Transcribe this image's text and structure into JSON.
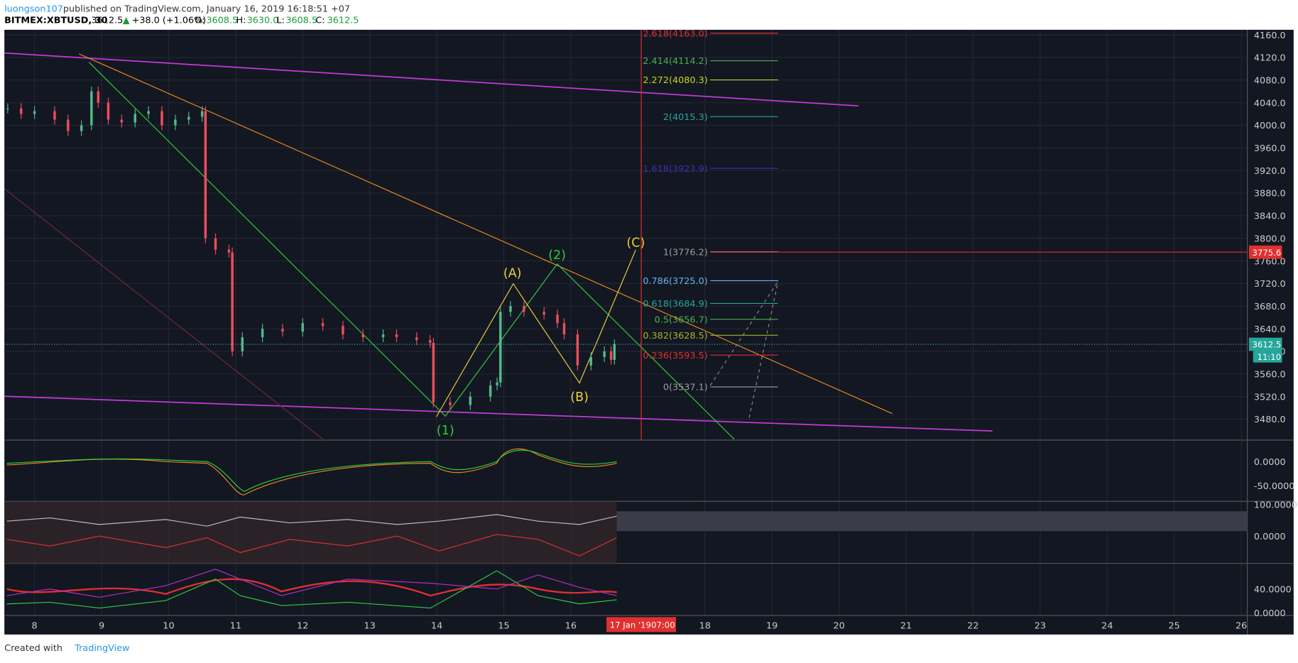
{
  "header": {
    "user": "luongson107",
    "published": "published on TradingView.com, January 16, 2019 16:18:51 +07",
    "symbol": "BITMEX:XBTUSD, 30",
    "price": "3612.5",
    "change": "+38.0 (+1.06%)",
    "o_label": "O:",
    "o": "3608.5",
    "h_label": "H:",
    "h": "3630.0",
    "l_label": "L:",
    "l": "3608.5",
    "c_label": "C:",
    "c": "3612.5"
  },
  "chart_data": {
    "type": "candlestick",
    "x": [
      7.6,
      7.8,
      8.0,
      8.3,
      8.5,
      8.7,
      8.85,
      8.95,
      9.1,
      9.3,
      9.5,
      9.7,
      9.9,
      10.1,
      10.3,
      10.5,
      10.55,
      10.7,
      10.9,
      10.95,
      11.1,
      11.4,
      11.7,
      12.0,
      12.3,
      12.6,
      12.9,
      13.2,
      13.4,
      13.7,
      13.9,
      13.95,
      14.2,
      14.5,
      14.8,
      14.9,
      14.95,
      15.1,
      15.3,
      15.6,
      15.8,
      15.9,
      16.1,
      16.3,
      16.5,
      16.6,
      16.65
    ],
    "values": [
      4030,
      4020,
      4025,
      4010,
      3990,
      4000,
      4060,
      4040,
      4010,
      4005,
      4020,
      4025,
      4000,
      4010,
      4015,
      4025,
      3800,
      3780,
      3775,
      3600,
      3625,
      3640,
      3635,
      3650,
      3645,
      3630,
      3625,
      3630,
      3625,
      3620,
      3615,
      3510,
      3505,
      3520,
      3540,
      3545,
      3670,
      3680,
      3670,
      3665,
      3650,
      3630,
      3575,
      3590,
      3600,
      3585,
      3612.5
    ],
    "up_color": "#53b987",
    "down_color": "#eb4d5c",
    "xlim": [
      7.55,
      26.09
    ],
    "ylim": [
      3443,
      4169
    ],
    "xticks": [
      8,
      9,
      10,
      11,
      12,
      13,
      14,
      15,
      16,
      18,
      19,
      20,
      21,
      22,
      23,
      24,
      25,
      26
    ],
    "yticks": [
      {
        "value": 4160,
        "label": "4160.0"
      },
      {
        "value": 4120,
        "label": "4120.0"
      },
      {
        "value": 4080,
        "label": "4080.0"
      },
      {
        "value": 4040,
        "label": "4040.0"
      },
      {
        "value": 4000,
        "label": "4000.0"
      },
      {
        "value": 3960,
        "label": "3960.0"
      },
      {
        "value": 3920,
        "label": "3920.0"
      },
      {
        "value": 3880,
        "label": "3880.0"
      },
      {
        "value": 3840,
        "label": "3840.0"
      },
      {
        "value": 3800,
        "label": "3800.0"
      },
      {
        "value": 3760,
        "label": "3760.0"
      },
      {
        "value": 3720,
        "label": "3720.0"
      },
      {
        "value": 3680,
        "label": "3680.0"
      },
      {
        "value": 3640,
        "label": "3640.0"
      },
      {
        "value": 3600,
        "label": "3600.0"
      },
      {
        "value": 3560,
        "label": "3560.0"
      },
      {
        "value": 3520,
        "label": "3520.0"
      },
      {
        "value": 3480,
        "label": "3480.0"
      }
    ],
    "fib": [
      {
        "label": "2.618(4163.0)",
        "value": 4163.0,
        "color": "#e0302f"
      },
      {
        "label": "2.414(4114.2)",
        "value": 4114.2,
        "color": "#4caf50"
      },
      {
        "label": "2.272(4080.3)",
        "value": 4080.3,
        "color": "#c4d21a"
      },
      {
        "label": "2(4015.3)",
        "value": 4015.3,
        "color": "#26a69a"
      },
      {
        "label": "1.618(3923.9)",
        "value": 3923.9,
        "color": "#3333aa"
      },
      {
        "label": "1(3776.2)",
        "value": 3776.2,
        "color": "#9e9e9e"
      },
      {
        "label": "0.786(3725.0)",
        "value": 3725.0,
        "color": "#64b5f6"
      },
      {
        "label": "0.618(3684.9)",
        "value": 3684.9,
        "color": "#26a69a"
      },
      {
        "label": "0.5(3656.7)",
        "value": 3656.7,
        "color": "#4caf50"
      },
      {
        "label": "0.382(3628.5)",
        "value": 3628.5,
        "color": "#a8b22a"
      },
      {
        "label": "0.236(3593.5)",
        "value": 3593.5,
        "color": "#e0302f"
      },
      {
        "label": "0(3537.1)",
        "value": 3537.1,
        "color": "#9e9e9e"
      }
    ],
    "last_price": 3612.5,
    "countdown": "11:10",
    "cross_price": 3775.6,
    "cross_x": 17.05,
    "cross_date": "17 Jan '19",
    "cross_time": "07:00",
    "waves": [
      "(1)",
      "(2)",
      "(A)",
      "(B)",
      "(C)"
    ]
  },
  "panes": [
    [
      "0.0000",
      "-50.0000"
    ],
    [
      "100.0000",
      "0.0000"
    ],
    [
      "40.0000",
      "0.0000"
    ]
  ],
  "footer": {
    "created": "Created with",
    "brand": "TradingView"
  }
}
